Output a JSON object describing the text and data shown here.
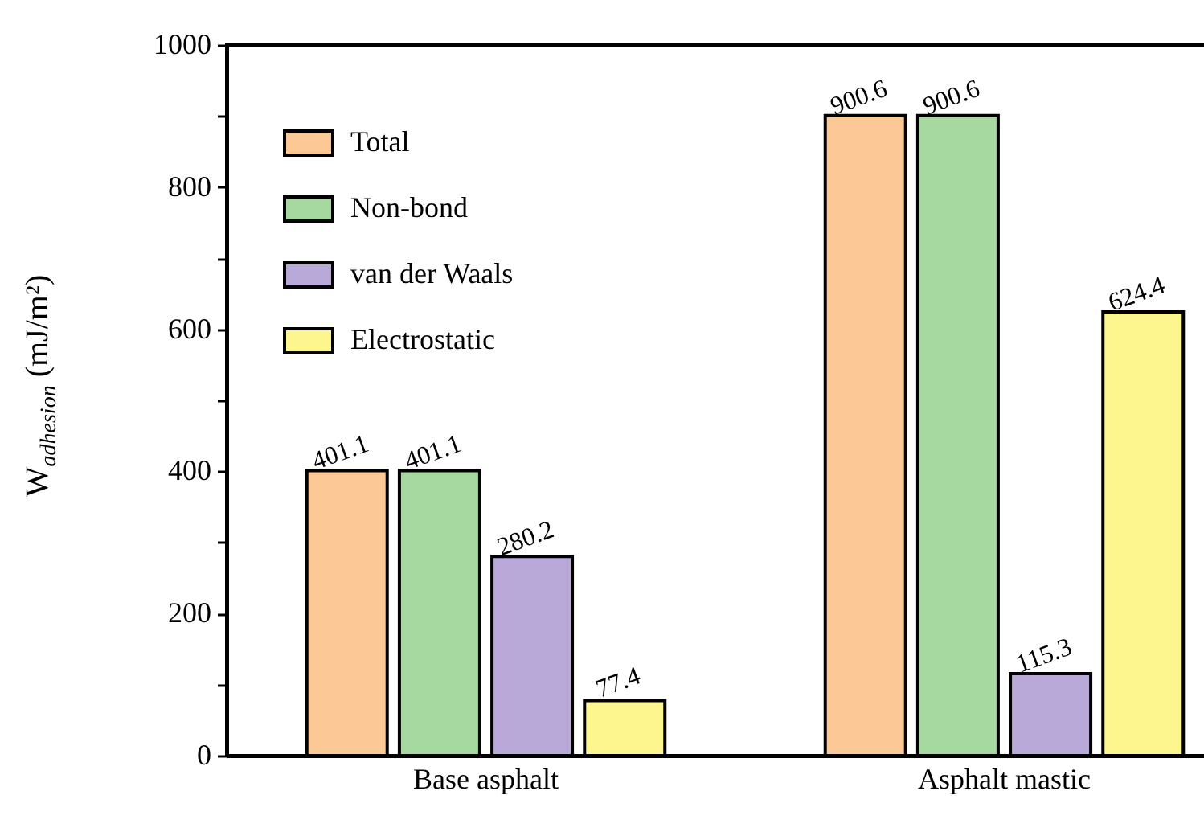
{
  "chart_data": {
    "type": "bar",
    "ylabel": "W$_{adhesion}$ (mJ/m²)",
    "categories": [
      "Base asphalt",
      "Asphalt mastic"
    ],
    "series": [
      {
        "name": "Total",
        "color": "#fbc896",
        "values": [
          401.1,
          900.6
        ]
      },
      {
        "name": "Non-bond",
        "color": "#a5d9a0",
        "values": [
          401.1,
          900.6
        ]
      },
      {
        "name": "van der Waals",
        "color": "#b9a9d9",
        "values": [
          280.2,
          115.3
        ]
      },
      {
        "name": "Electrostatic",
        "color": "#fdf58e",
        "values": [
          77.4,
          624.4
        ]
      }
    ],
    "ylim": [
      0,
      1000
    ],
    "yticks": [
      0,
      {
        "value": 100,
        "label": null
      },
      200,
      {
        "value": 300,
        "label": null
      },
      400,
      {
        "value": 500,
        "label": null
      },
      600,
      {
        "value": 700,
        "label": null
      },
      800,
      {
        "value": 900,
        "label": null
      },
      1000
    ],
    "data_labels": true,
    "legend": "top left",
    "grid": false
  }
}
